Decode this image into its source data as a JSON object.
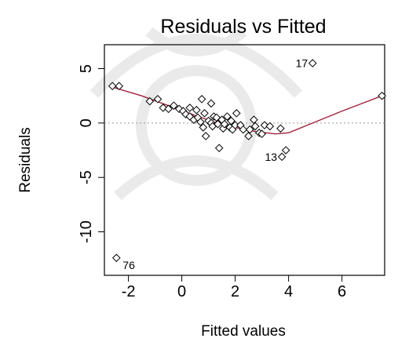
{
  "chart_data": {
    "type": "scatter",
    "title": "Residuals vs Fitted",
    "xlabel": "Fitted values",
    "ylabel": "Residuals",
    "xlim": [
      -2.9,
      7.6
    ],
    "ylim": [
      -14.0,
      7.2
    ],
    "x_ticks": [
      -2,
      0,
      2,
      4,
      6
    ],
    "y_ticks": [
      5,
      0,
      -5,
      -10
    ],
    "grid": false,
    "reference_line": {
      "y": 0,
      "color": "#999999",
      "style": "dotted"
    },
    "points": [
      {
        "x": -2.6,
        "y": 3.4
      },
      {
        "x": -2.35,
        "y": 3.4
      },
      {
        "x": -1.2,
        "y": 2.0
      },
      {
        "x": -0.9,
        "y": 2.2
      },
      {
        "x": -0.7,
        "y": 1.4
      },
      {
        "x": -0.5,
        "y": 1.3
      },
      {
        "x": -0.3,
        "y": 1.6
      },
      {
        "x": -0.1,
        "y": 1.3
      },
      {
        "x": 0.05,
        "y": 1.1
      },
      {
        "x": 0.15,
        "y": 0.8
      },
      {
        "x": 0.3,
        "y": 0.6
      },
      {
        "x": 0.3,
        "y": 1.4
      },
      {
        "x": 0.45,
        "y": 0.3
      },
      {
        "x": 0.55,
        "y": 1.2
      },
      {
        "x": 0.6,
        "y": 0.5
      },
      {
        "x": 0.7,
        "y": 0.1
      },
      {
        "x": 0.75,
        "y": 2.2
      },
      {
        "x": 0.8,
        "y": -0.4
      },
      {
        "x": 0.85,
        "y": 0.9
      },
      {
        "x": 0.9,
        "y": -1.2
      },
      {
        "x": 1.0,
        "y": 0.2
      },
      {
        "x": 1.1,
        "y": 0.0
      },
      {
        "x": 1.1,
        "y": 1.8
      },
      {
        "x": 1.15,
        "y": -0.3
      },
      {
        "x": 1.2,
        "y": 0.6
      },
      {
        "x": 1.3,
        "y": 0.5
      },
      {
        "x": 1.35,
        "y": -0.1
      },
      {
        "x": 1.4,
        "y": -2.3
      },
      {
        "x": 1.5,
        "y": 0.3
      },
      {
        "x": 1.55,
        "y": -0.5
      },
      {
        "x": 1.6,
        "y": -0.1
      },
      {
        "x": 1.7,
        "y": 0.6
      },
      {
        "x": 1.8,
        "y": -0.4
      },
      {
        "x": 1.85,
        "y": 0.2
      },
      {
        "x": 1.9,
        "y": -0.6
      },
      {
        "x": 2.0,
        "y": -0.2
      },
      {
        "x": 2.05,
        "y": 0.9
      },
      {
        "x": 2.2,
        "y": -0.2
      },
      {
        "x": 2.3,
        "y": -0.6
      },
      {
        "x": 2.5,
        "y": -1.2
      },
      {
        "x": 2.55,
        "y": -0.6
      },
      {
        "x": 2.7,
        "y": 0.3
      },
      {
        "x": 2.75,
        "y": -0.3
      },
      {
        "x": 2.9,
        "y": -0.9
      },
      {
        "x": 3.0,
        "y": -1.0
      },
      {
        "x": 3.1,
        "y": -0.2
      },
      {
        "x": 3.3,
        "y": -0.3
      },
      {
        "x": 3.7,
        "y": -0.5
      },
      {
        "x": 3.75,
        "y": -3.1
      },
      {
        "x": 3.9,
        "y": -2.5
      },
      {
        "x": 4.9,
        "y": 5.5
      },
      {
        "x": 7.5,
        "y": 2.5
      },
      {
        "x": -2.45,
        "y": -12.4
      }
    ],
    "smooth_line": {
      "color": "#a0223c",
      "x": [
        -2.6,
        -1.5,
        -0.5,
        0.5,
        1.2,
        2.0,
        2.8,
        3.5,
        4.0,
        5.0,
        6.0,
        7.5
      ],
      "y": [
        3.3,
        2.5,
        1.6,
        0.7,
        0.1,
        -0.4,
        -0.8,
        -1.0,
        -0.9,
        0.1,
        1.1,
        2.5
      ]
    },
    "annotations": [
      {
        "label": "17",
        "x": 4.9,
        "y": 5.5
      },
      {
        "label": "13",
        "x": 3.75,
        "y": -3.1
      },
      {
        "label": "76",
        "x": -2.45,
        "y": -12.4
      }
    ]
  }
}
